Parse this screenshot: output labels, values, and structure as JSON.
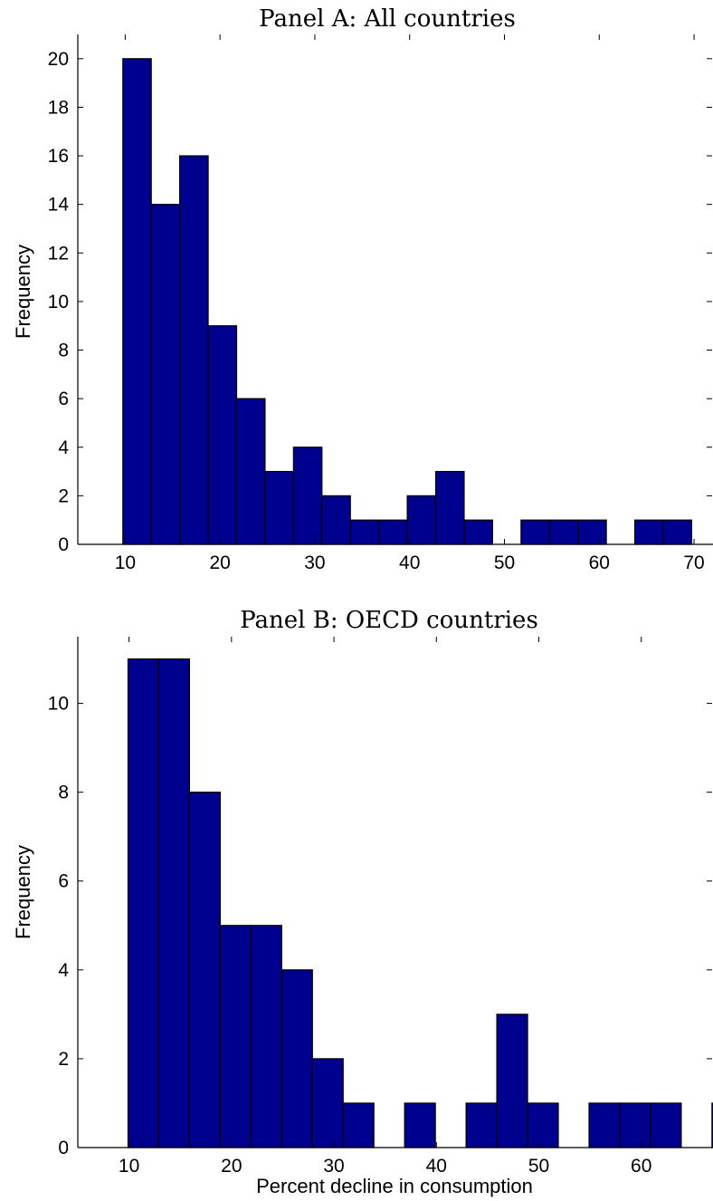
{
  "chart_data": [
    {
      "type": "bar",
      "title": "Panel A: All countries",
      "xlabel": "",
      "ylabel": "Frequency",
      "xlim": [
        5,
        72
      ],
      "ylim": [
        0,
        21
      ],
      "xticks": [
        10,
        20,
        30,
        40,
        50,
        60,
        70
      ],
      "yticks": [
        0,
        2,
        4,
        6,
        8,
        10,
        12,
        14,
        16,
        18,
        20
      ],
      "bar_color": "#00008f",
      "bins": [
        {
          "x0": 9.75,
          "x1": 12.75,
          "value": 20
        },
        {
          "x0": 12.75,
          "x1": 15.75,
          "value": 14
        },
        {
          "x0": 15.75,
          "x1": 18.75,
          "value": 16
        },
        {
          "x0": 18.75,
          "x1": 21.75,
          "value": 9
        },
        {
          "x0": 21.75,
          "x1": 24.75,
          "value": 6
        },
        {
          "x0": 24.75,
          "x1": 27.75,
          "value": 3
        },
        {
          "x0": 27.75,
          "x1": 30.75,
          "value": 4
        },
        {
          "x0": 30.75,
          "x1": 33.75,
          "value": 2
        },
        {
          "x0": 33.75,
          "x1": 36.75,
          "value": 1
        },
        {
          "x0": 36.75,
          "x1": 39.75,
          "value": 1
        },
        {
          "x0": 39.75,
          "x1": 42.75,
          "value": 2
        },
        {
          "x0": 42.75,
          "x1": 45.75,
          "value": 3
        },
        {
          "x0": 45.75,
          "x1": 48.75,
          "value": 1
        },
        {
          "x0": 48.75,
          "x1": 51.75,
          "value": 0
        },
        {
          "x0": 51.75,
          "x1": 54.75,
          "value": 1
        },
        {
          "x0": 54.75,
          "x1": 57.75,
          "value": 1
        },
        {
          "x0": 57.75,
          "x1": 60.75,
          "value": 1
        },
        {
          "x0": 60.75,
          "x1": 63.75,
          "value": 0
        },
        {
          "x0": 63.75,
          "x1": 66.75,
          "value": 1
        },
        {
          "x0": 66.75,
          "x1": 69.75,
          "value": 1
        }
      ]
    },
    {
      "type": "bar",
      "title": "Panel B: OECD countries",
      "xlabel": "Percent decline in consumption",
      "ylabel": "Frequency",
      "xlim": [
        5,
        67
      ],
      "ylim": [
        0,
        11.5
      ],
      "xticks": [
        10,
        20,
        30,
        40,
        50,
        60
      ],
      "yticks": [
        0,
        2,
        4,
        6,
        8,
        10
      ],
      "bar_color": "#00008f",
      "bins": [
        {
          "x0": 9.9,
          "x1": 12.9,
          "value": 11
        },
        {
          "x0": 12.9,
          "x1": 15.9,
          "value": 11
        },
        {
          "x0": 15.9,
          "x1": 18.9,
          "value": 8
        },
        {
          "x0": 18.9,
          "x1": 21.9,
          "value": 5
        },
        {
          "x0": 21.9,
          "x1": 24.9,
          "value": 5
        },
        {
          "x0": 24.9,
          "x1": 27.9,
          "value": 4
        },
        {
          "x0": 27.9,
          "x1": 30.9,
          "value": 2
        },
        {
          "x0": 30.9,
          "x1": 33.9,
          "value": 1
        },
        {
          "x0": 33.9,
          "x1": 36.9,
          "value": 0
        },
        {
          "x0": 36.9,
          "x1": 39.9,
          "value": 1
        },
        {
          "x0": 39.9,
          "x1": 42.9,
          "value": 0
        },
        {
          "x0": 42.9,
          "x1": 45.9,
          "value": 1
        },
        {
          "x0": 45.9,
          "x1": 48.9,
          "value": 3
        },
        {
          "x0": 48.9,
          "x1": 51.9,
          "value": 1
        },
        {
          "x0": 51.9,
          "x1": 54.9,
          "value": 0
        },
        {
          "x0": 54.9,
          "x1": 57.9,
          "value": 1
        },
        {
          "x0": 57.9,
          "x1": 60.9,
          "value": 1
        },
        {
          "x0": 60.9,
          "x1": 63.9,
          "value": 1
        },
        {
          "x0": 63.9,
          "x1": 66.9,
          "value": 0
        },
        {
          "x0": 66.9,
          "x1": 69.9,
          "value": 1
        }
      ]
    }
  ]
}
